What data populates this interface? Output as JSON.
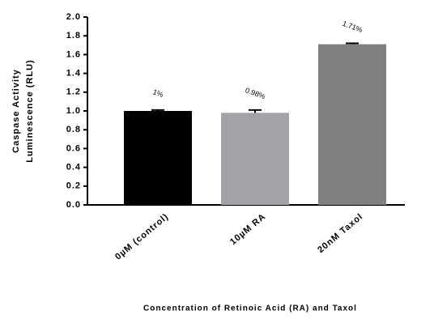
{
  "chart_data": {
    "type": "bar",
    "y_label_lines": [
      "Caspase Activity",
      "Luminescence (RLU)"
    ],
    "x_label": "Concentration of Retinoic Acid (RA) and Taxol",
    "categories": [
      "0µM (control)",
      "10µM RA",
      "20nM Taxol"
    ],
    "values": [
      1.0,
      0.98,
      1.71
    ],
    "value_labels": [
      "1%",
      "0.98%",
      "1.71%"
    ],
    "errors": [
      0.01,
      0.03,
      0.01
    ],
    "colors": [
      "#000000",
      "#a3a3a7",
      "#808080"
    ],
    "ylim": [
      0,
      2
    ],
    "yticks": [
      {
        "value": 0,
        "label": "0.0"
      },
      0.2,
      0.4,
      0.6,
      0.8,
      {
        "value": 1,
        "label": "1.0"
      },
      1.2,
      1.4,
      1.6,
      1.8,
      {
        "value": 2,
        "label": "2.0"
      }
    ]
  }
}
